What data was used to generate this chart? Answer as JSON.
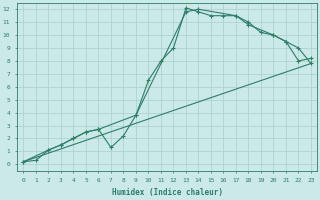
{
  "line1_x": [
    0,
    1,
    2,
    3,
    4,
    5,
    6,
    7,
    8,
    9,
    10,
    11,
    12,
    13,
    14,
    15,
    16,
    17,
    18,
    19,
    20,
    21,
    22,
    23
  ],
  "line1_y": [
    0.2,
    0.3,
    1.1,
    1.5,
    2.0,
    2.5,
    2.7,
    1.3,
    2.2,
    3.8,
    6.5,
    8.0,
    9.0,
    12.1,
    11.8,
    11.5,
    11.5,
    11.5,
    11.0,
    10.2,
    10.0,
    9.5,
    8.0,
    8.2
  ],
  "line2_x": [
    0,
    23
  ],
  "line2_y": [
    0.2,
    7.8
  ],
  "line3_x": [
    0,
    2,
    3,
    4,
    5,
    6,
    9,
    13,
    14,
    17,
    18,
    20,
    21,
    22,
    23
  ],
  "line3_y": [
    0.2,
    1.1,
    1.5,
    2.0,
    2.5,
    2.7,
    3.8,
    11.8,
    12.0,
    11.5,
    10.8,
    10.0,
    9.5,
    9.0,
    7.8
  ],
  "color": "#2E7D6B",
  "bg_color": "#CBE9E6",
  "grid_color": "#AACFCC",
  "xlabel": "Humidex (Indice chaleur)",
  "xlim_min": -0.5,
  "xlim_max": 23.5,
  "ylim_min": -0.5,
  "ylim_max": 12.5,
  "xtick_labels": [
    "0",
    "1",
    "2",
    "3",
    "4",
    "5",
    "6",
    "7",
    "8",
    "9",
    "10",
    "11",
    "12",
    "13",
    "14",
    "15",
    "16",
    "17",
    "18",
    "19",
    "20",
    "21",
    "22",
    "23"
  ],
  "ytick_labels": [
    "0",
    "1",
    "2",
    "3",
    "4",
    "5",
    "6",
    "7",
    "8",
    "9",
    "10",
    "11",
    "12"
  ],
  "marker": "+",
  "markersize": 3,
  "linewidth": 0.8
}
